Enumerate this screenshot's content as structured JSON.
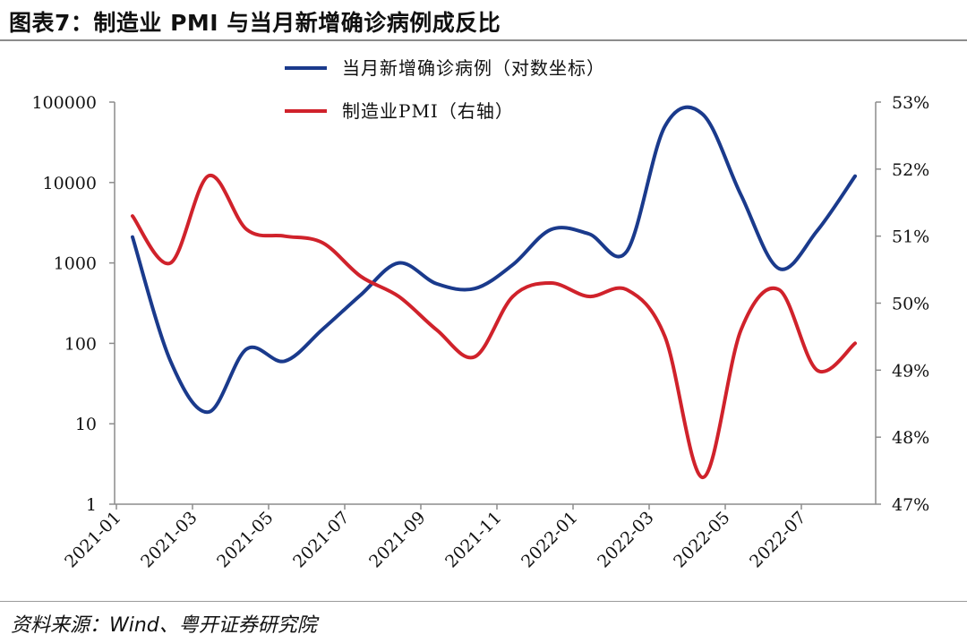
{
  "title": "图表7：制造业 PMI 与当月新增确诊病例成反比",
  "source": "资料来源：Wind、粤开证券研究院",
  "colors": {
    "blue": "#1a3a8c",
    "red": "#d0222b",
    "axis": "#8c8c8c"
  },
  "chart_data": {
    "type": "line",
    "x_ticks": [
      "2021-01",
      "2021-03",
      "2021-05",
      "2021-07",
      "2021-09",
      "2021-11",
      "2022-01",
      "2022-03",
      "2022-05",
      "2022-07"
    ],
    "grid": false,
    "legend_position": "top-center",
    "left_axis": {
      "scale": "log",
      "range": [
        1,
        100000
      ],
      "tick_values": [
        1,
        10,
        100,
        1000,
        10000,
        100000
      ],
      "tick_labels": [
        "1",
        "10",
        "100",
        "1000",
        "10000",
        "100000"
      ]
    },
    "right_axis": {
      "scale": "linear",
      "range": [
        47,
        53
      ],
      "unit": "%",
      "tick_values": [
        47,
        48,
        49,
        50,
        51,
        52,
        53
      ],
      "tick_labels": [
        "47%",
        "48%",
        "49%",
        "50%",
        "51%",
        "52%",
        "53%"
      ]
    },
    "x": [
      "2021-01",
      "2021-02",
      "2021-03",
      "2021-04",
      "2021-05",
      "2021-06",
      "2021-07",
      "2021-08",
      "2021-09",
      "2021-10",
      "2021-11",
      "2021-12",
      "2022-01",
      "2022-02",
      "2022-03",
      "2022-04",
      "2022-05",
      "2022-06",
      "2022-07",
      "2022-08"
    ],
    "series": [
      {
        "name": "当月新增确诊病例（对数坐标）",
        "axis": "left",
        "color": "#1a3a8c",
        "values": [
          2100,
          60,
          14,
          85,
          60,
          150,
          400,
          1000,
          550,
          480,
          950,
          2600,
          2300,
          1400,
          50000,
          70000,
          7000,
          850,
          2500,
          12000
        ]
      },
      {
        "name": "制造业PMI（右轴）",
        "axis": "right",
        "color": "#d0222b",
        "values": [
          51.3,
          50.6,
          51.9,
          51.1,
          51.0,
          50.9,
          50.4,
          50.1,
          49.6,
          49.2,
          50.1,
          50.3,
          50.1,
          50.2,
          49.5,
          47.4,
          49.6,
          50.2,
          49.0,
          49.4
        ]
      }
    ]
  }
}
